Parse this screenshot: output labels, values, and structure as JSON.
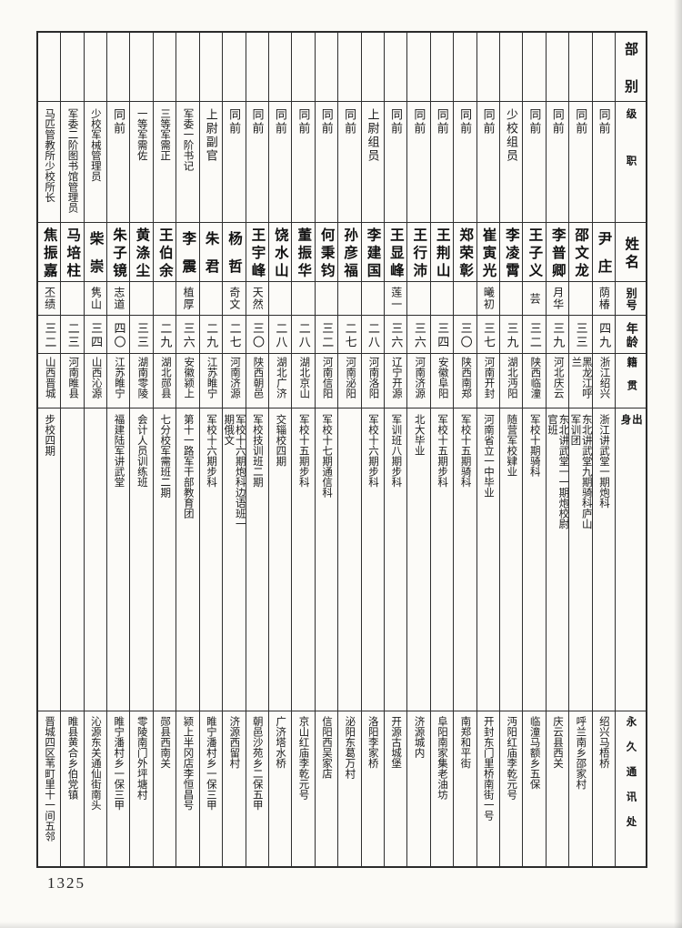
{
  "page": {
    "number": "1325"
  },
  "table": {
    "headers": {
      "unit": "部别",
      "rank": "级职",
      "name": "姓名",
      "alias": "别号",
      "age": "年龄",
      "origin": "籍贯",
      "background": "出身",
      "address": "永久通讯处"
    },
    "persons": [
      {
        "unit": "",
        "rank": "同前",
        "name": "尹庄",
        "alias": "荫椿",
        "age": "四九",
        "origin": "浙江绍兴",
        "background": "浙江讲武堂一期炮科",
        "address": "绍兴马梧桥"
      },
      {
        "unit": "",
        "rank": "同前",
        "name": "邵文龙",
        "alias": "",
        "age": "三三",
        "origin": "黑龙江呼兰",
        "background": "东北讲武堂九期骑科庐山军训团",
        "address": "呼兰南乡邵家村"
      },
      {
        "unit": "",
        "rank": "同前",
        "name": "李普卿",
        "alias": "月华",
        "age": "三九",
        "origin": "河北庆云",
        "background": "东北讲武堂一一期炮校尉官班",
        "address": "庆云县西关"
      },
      {
        "unit": "",
        "rank": "同前",
        "name": "王子义",
        "alias": "芸",
        "age": "三二",
        "origin": "陕西临潼",
        "background": "军校十期骑科",
        "address": "临潼马额乡五保"
      },
      {
        "unit": "",
        "rank": "少校组员",
        "name": "李凌霄",
        "alias": "",
        "age": "三九",
        "origin": "湖北沔阳",
        "background": "随营军校肄业",
        "address": "沔阳红庙李乾元号"
      },
      {
        "unit": "",
        "rank": "同前",
        "name": "崔寅光",
        "alias": "曦初",
        "age": "三七",
        "origin": "河南开封",
        "background": "河南省立一中毕业",
        "address": "开封东门里桥南街一号"
      },
      {
        "unit": "",
        "rank": "同前",
        "name": "郑荣彰",
        "alias": "",
        "age": "三〇",
        "origin": "陕西南郑",
        "background": "军校十五期骑科",
        "address": "南郑和平街"
      },
      {
        "unit": "",
        "rank": "同前",
        "name": "王荆山",
        "alias": "",
        "age": "三四",
        "origin": "安徽阜阳",
        "background": "军校十五期步科",
        "address": "阜阳南家集老油坊"
      },
      {
        "unit": "",
        "rank": "同前",
        "name": "王行沛",
        "alias": "",
        "age": "三六",
        "origin": "河南济源",
        "background": "北大毕业",
        "address": "济源城内"
      },
      {
        "unit": "",
        "rank": "同前",
        "name": "王显峰",
        "alias": "莲一",
        "age": "三六",
        "origin": "辽宁开源",
        "background": "军训班八期步科",
        "address": "开源古城堡"
      },
      {
        "unit": "",
        "rank": "上尉组员",
        "name": "李建国",
        "alias": "",
        "age": "二八",
        "origin": "河南洛阳",
        "background": "军校十六期步科",
        "address": "洛阳李家桥"
      },
      {
        "unit": "",
        "rank": "同前",
        "name": "孙彦福",
        "alias": "",
        "age": "二七",
        "origin": "河南泌阳",
        "background": "",
        "address": "泌阳东葛万村"
      },
      {
        "unit": "",
        "rank": "同前",
        "name": "何秉钧",
        "alias": "",
        "age": "三二",
        "origin": "河南信阳",
        "background": "军校十七期通信科",
        "address": "信阳西吴家店"
      },
      {
        "unit": "",
        "rank": "同前",
        "name": "董振华",
        "alias": "",
        "age": "二八",
        "origin": "湖北京山",
        "background": "军校十五期步科",
        "address": "京山红庙李乾元号"
      },
      {
        "unit": "",
        "rank": "同前",
        "name": "饶水山",
        "alias": "",
        "age": "二八",
        "origin": "湖北广济",
        "background": "交辎校四期",
        "address": "广济塔水桥"
      },
      {
        "unit": "",
        "rank": "同前",
        "name": "王宇峰",
        "alias": "天然",
        "age": "三〇",
        "origin": "陕西朝邑",
        "background": "军校技训班二期",
        "address": "朝邑沙苑乡二保五甲"
      },
      {
        "unit": "",
        "rank": "同前",
        "name": "杨哲",
        "alias": "奇文",
        "age": "二七",
        "origin": "河南济源",
        "background": "军校十六期炮科边语班一期俄文",
        "address": "济源西留村"
      },
      {
        "unit": "",
        "rank": "上尉副官",
        "name": "朱君",
        "alias": "",
        "age": "二九",
        "origin": "江苏睢宁",
        "background": "军校十六期步科",
        "address": "睢宁潘村乡一保三甲"
      },
      {
        "unit": "",
        "rank": "军委一阶书记",
        "name": "李震",
        "alias": "植厚",
        "age": "三六",
        "origin": "安徽颍上",
        "background": "第十一路军干部教育团",
        "address": "颍上半冈店李恒昌号"
      },
      {
        "unit": "",
        "rank": "三等军需正",
        "name": "王伯余",
        "alias": "",
        "age": "二九",
        "origin": "湖北郧县",
        "background": "七分校军需班二期",
        "address": "郧县西南关"
      },
      {
        "unit": "",
        "rank": "一等军需佐",
        "name": "黄涤尘",
        "alias": "",
        "age": "三三",
        "origin": "湖南零陵",
        "background": "会计人员训练班",
        "address": "零陵南门外坪塘村"
      },
      {
        "unit": "",
        "rank": "同前",
        "name": "朱子镜",
        "alias": "志道",
        "age": "四〇",
        "origin": "江苏睢宁",
        "background": "福建陆军讲武堂",
        "address": "睢宁潘村乡一保三甲"
      },
      {
        "unit": "",
        "rank": "少校军械管理员",
        "name": "柴崇",
        "alias": "隽山",
        "age": "三四",
        "origin": "山西沁源",
        "background": "",
        "address": "沁源东关通仙街南头"
      },
      {
        "unit": "",
        "rank": "军委二阶图书馆管理员",
        "name": "马培柱",
        "alias": "",
        "age": "二三",
        "origin": "河南睢县",
        "background": "",
        "address": "睢县黄合乡伯党镇"
      },
      {
        "unit": "",
        "rank": "马匹管教所少校所长",
        "name": "焦振嘉",
        "alias": "丕绩",
        "age": "三二",
        "origin": "山西晋城",
        "background": "步校四期",
        "address": "晋城四区苇町里十一间五邻"
      }
    ]
  }
}
